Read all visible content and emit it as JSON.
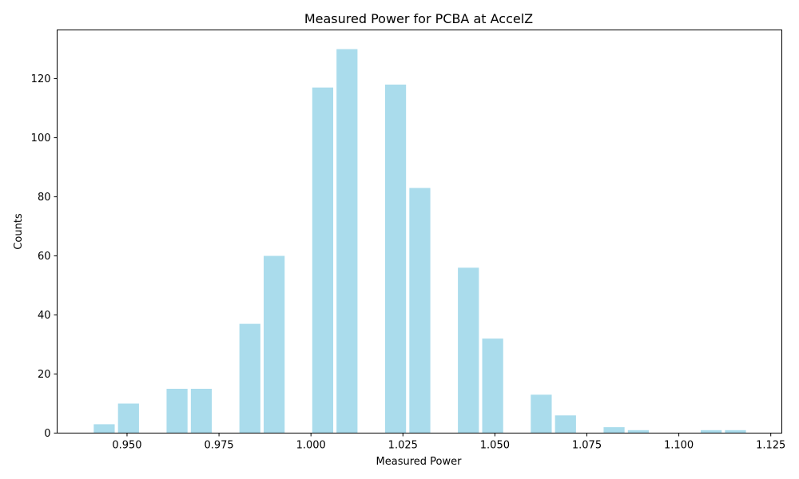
{
  "chart_data": {
    "type": "bar",
    "title": "Measured Power for PCBA at AccelZ",
    "xlabel": "Measured Power",
    "ylabel": "Counts",
    "xlim": [
      0.931,
      1.128
    ],
    "ylim": [
      0,
      136.5
    ],
    "grid": false,
    "bar_color": "#aadcec",
    "bar_width": 0.0057,
    "x_ticks": [
      0.95,
      0.975,
      1.0,
      1.025,
      1.05,
      1.075,
      1.1,
      1.125
    ],
    "x_tick_labels": [
      "0.950",
      "0.975",
      "1.000",
      "1.025",
      "1.050",
      "1.075",
      "1.100",
      "1.125"
    ],
    "y_ticks": [
      0,
      20,
      40,
      60,
      80,
      100,
      120
    ],
    "y_tick_labels": [
      "0",
      "20",
      "40",
      "60",
      "80",
      "100",
      "120"
    ],
    "x": [
      0.9438,
      0.9504,
      0.9636,
      0.9702,
      0.9834,
      0.99,
      1.0032,
      1.0098,
      1.023,
      1.0296,
      1.0428,
      1.0494,
      1.0626,
      1.0692,
      1.0824,
      1.089,
      1.1088,
      1.1154
    ],
    "values": [
      3,
      10,
      15,
      15,
      37,
      60,
      117,
      130,
      118,
      83,
      56,
      32,
      13,
      6,
      2,
      1,
      1,
      1
    ]
  }
}
